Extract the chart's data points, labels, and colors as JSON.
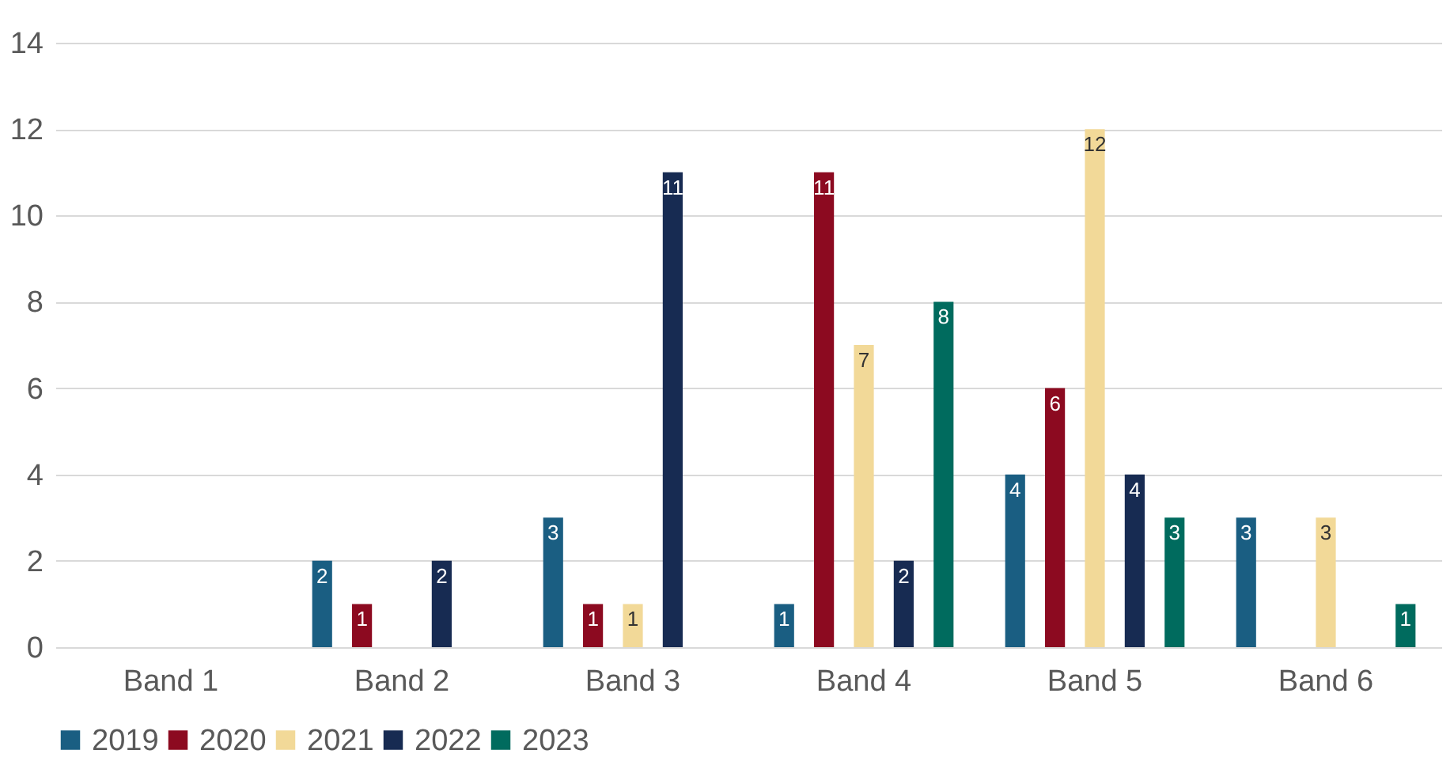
{
  "chart_data": {
    "type": "bar",
    "categories": [
      "Band 1",
      "Band 2",
      "Band 3",
      "Band 4",
      "Band 5",
      "Band 6"
    ],
    "series": [
      {
        "name": "2019",
        "color": "#1a5e82",
        "values": [
          null,
          2,
          3,
          1,
          4,
          3
        ]
      },
      {
        "name": "2020",
        "color": "#8c0a20",
        "values": [
          null,
          1,
          1,
          11,
          6,
          null
        ]
      },
      {
        "name": "2021",
        "color": "#f2d998",
        "values": [
          null,
          null,
          1,
          7,
          12,
          3
        ]
      },
      {
        "name": "2022",
        "color": "#172b52",
        "values": [
          null,
          2,
          11,
          2,
          4,
          null
        ]
      },
      {
        "name": "2023",
        "color": "#006b5e",
        "values": [
          null,
          null,
          null,
          8,
          3,
          1
        ]
      }
    ],
    "ylim": [
      0,
      14
    ],
    "yticks": [
      0,
      2,
      4,
      6,
      8,
      10,
      12,
      14
    ],
    "grid": "y",
    "legend": "bottom",
    "data_labels": true
  }
}
